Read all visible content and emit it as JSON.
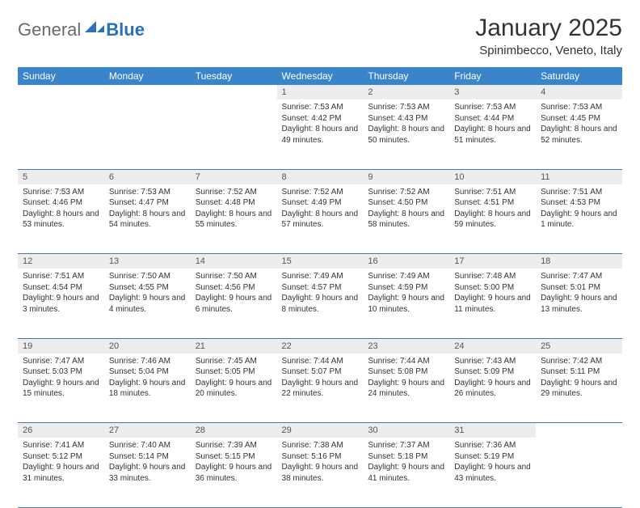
{
  "logo": {
    "general": "General",
    "blue": "Blue"
  },
  "title": "January 2025",
  "location": "Spinimbecco, Veneto, Italy",
  "colors": {
    "header_bg": "#3a85c9",
    "header_text": "#ffffff",
    "daynum_bg": "#ededed",
    "border": "#4a78a8",
    "logo_general": "#6a6a6a",
    "logo_blue": "#2a71b8",
    "text": "#333333"
  },
  "day_headers": [
    "Sunday",
    "Monday",
    "Tuesday",
    "Wednesday",
    "Thursday",
    "Friday",
    "Saturday"
  ],
  "weeks": [
    [
      null,
      null,
      null,
      {
        "n": "1",
        "sr": "7:53 AM",
        "ss": "4:42 PM",
        "dl": "8 hours and 49 minutes."
      },
      {
        "n": "2",
        "sr": "7:53 AM",
        "ss": "4:43 PM",
        "dl": "8 hours and 50 minutes."
      },
      {
        "n": "3",
        "sr": "7:53 AM",
        "ss": "4:44 PM",
        "dl": "8 hours and 51 minutes."
      },
      {
        "n": "4",
        "sr": "7:53 AM",
        "ss": "4:45 PM",
        "dl": "8 hours and 52 minutes."
      }
    ],
    [
      {
        "n": "5",
        "sr": "7:53 AM",
        "ss": "4:46 PM",
        "dl": "8 hours and 53 minutes."
      },
      {
        "n": "6",
        "sr": "7:53 AM",
        "ss": "4:47 PM",
        "dl": "8 hours and 54 minutes."
      },
      {
        "n": "7",
        "sr": "7:52 AM",
        "ss": "4:48 PM",
        "dl": "8 hours and 55 minutes."
      },
      {
        "n": "8",
        "sr": "7:52 AM",
        "ss": "4:49 PM",
        "dl": "8 hours and 57 minutes."
      },
      {
        "n": "9",
        "sr": "7:52 AM",
        "ss": "4:50 PM",
        "dl": "8 hours and 58 minutes."
      },
      {
        "n": "10",
        "sr": "7:51 AM",
        "ss": "4:51 PM",
        "dl": "8 hours and 59 minutes."
      },
      {
        "n": "11",
        "sr": "7:51 AM",
        "ss": "4:53 PM",
        "dl": "9 hours and 1 minute."
      }
    ],
    [
      {
        "n": "12",
        "sr": "7:51 AM",
        "ss": "4:54 PM",
        "dl": "9 hours and 3 minutes."
      },
      {
        "n": "13",
        "sr": "7:50 AM",
        "ss": "4:55 PM",
        "dl": "9 hours and 4 minutes."
      },
      {
        "n": "14",
        "sr": "7:50 AM",
        "ss": "4:56 PM",
        "dl": "9 hours and 6 minutes."
      },
      {
        "n": "15",
        "sr": "7:49 AM",
        "ss": "4:57 PM",
        "dl": "9 hours and 8 minutes."
      },
      {
        "n": "16",
        "sr": "7:49 AM",
        "ss": "4:59 PM",
        "dl": "9 hours and 10 minutes."
      },
      {
        "n": "17",
        "sr": "7:48 AM",
        "ss": "5:00 PM",
        "dl": "9 hours and 11 minutes."
      },
      {
        "n": "18",
        "sr": "7:47 AM",
        "ss": "5:01 PM",
        "dl": "9 hours and 13 minutes."
      }
    ],
    [
      {
        "n": "19",
        "sr": "7:47 AM",
        "ss": "5:03 PM",
        "dl": "9 hours and 15 minutes."
      },
      {
        "n": "20",
        "sr": "7:46 AM",
        "ss": "5:04 PM",
        "dl": "9 hours and 18 minutes."
      },
      {
        "n": "21",
        "sr": "7:45 AM",
        "ss": "5:05 PM",
        "dl": "9 hours and 20 minutes."
      },
      {
        "n": "22",
        "sr": "7:44 AM",
        "ss": "5:07 PM",
        "dl": "9 hours and 22 minutes."
      },
      {
        "n": "23",
        "sr": "7:44 AM",
        "ss": "5:08 PM",
        "dl": "9 hours and 24 minutes."
      },
      {
        "n": "24",
        "sr": "7:43 AM",
        "ss": "5:09 PM",
        "dl": "9 hours and 26 minutes."
      },
      {
        "n": "25",
        "sr": "7:42 AM",
        "ss": "5:11 PM",
        "dl": "9 hours and 29 minutes."
      }
    ],
    [
      {
        "n": "26",
        "sr": "7:41 AM",
        "ss": "5:12 PM",
        "dl": "9 hours and 31 minutes."
      },
      {
        "n": "27",
        "sr": "7:40 AM",
        "ss": "5:14 PM",
        "dl": "9 hours and 33 minutes."
      },
      {
        "n": "28",
        "sr": "7:39 AM",
        "ss": "5:15 PM",
        "dl": "9 hours and 36 minutes."
      },
      {
        "n": "29",
        "sr": "7:38 AM",
        "ss": "5:16 PM",
        "dl": "9 hours and 38 minutes."
      },
      {
        "n": "30",
        "sr": "7:37 AM",
        "ss": "5:18 PM",
        "dl": "9 hours and 41 minutes."
      },
      {
        "n": "31",
        "sr": "7:36 AM",
        "ss": "5:19 PM",
        "dl": "9 hours and 43 minutes."
      },
      null
    ]
  ],
  "labels": {
    "sunrise": "Sunrise:",
    "sunset": "Sunset:",
    "daylight": "Daylight:"
  }
}
